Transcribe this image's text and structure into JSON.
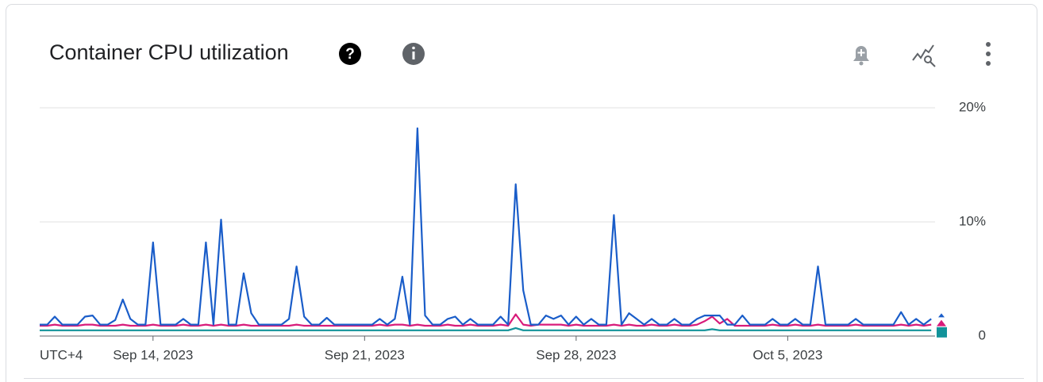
{
  "chart_data": {
    "type": "line",
    "title": "Container CPU utilization",
    "timezone": "UTC+4",
    "x": [
      "2023-09-10T06:00",
      "2023-09-10T12:00",
      "2023-09-10T18:00",
      "2023-09-11T00:00",
      "2023-09-11T06:00",
      "2023-09-11T12:00",
      "2023-09-11T18:00",
      "2023-09-12T00:00",
      "2023-09-12T06:00",
      "2023-09-12T12:00",
      "2023-09-12T18:00",
      "2023-09-13T00:00",
      "2023-09-13T06:00",
      "2023-09-13T12:00",
      "2023-09-13T18:00",
      "2023-09-14T00:00",
      "2023-09-14T06:00",
      "2023-09-14T12:00",
      "2023-09-14T18:00",
      "2023-09-15T00:00",
      "2023-09-15T06:00",
      "2023-09-15T12:00",
      "2023-09-15T18:00",
      "2023-09-16T00:00",
      "2023-09-16T06:00",
      "2023-09-16T12:00",
      "2023-09-16T18:00",
      "2023-09-17T00:00",
      "2023-09-17T06:00",
      "2023-09-17T12:00",
      "2023-09-17T18:00",
      "2023-09-18T00:00",
      "2023-09-18T06:00",
      "2023-09-18T12:00",
      "2023-09-18T18:00",
      "2023-09-19T00:00",
      "2023-09-19T06:00",
      "2023-09-19T12:00",
      "2023-09-19T18:00",
      "2023-09-20T00:00",
      "2023-09-20T06:00",
      "2023-09-20T12:00",
      "2023-09-20T18:00",
      "2023-09-21T00:00",
      "2023-09-21T06:00",
      "2023-09-21T12:00",
      "2023-09-21T18:00",
      "2023-09-22T00:00",
      "2023-09-22T06:00",
      "2023-09-22T12:00",
      "2023-09-22T18:00",
      "2023-09-23T00:00",
      "2023-09-23T06:00",
      "2023-09-23T12:00",
      "2023-09-23T18:00",
      "2023-09-24T00:00",
      "2023-09-24T06:00",
      "2023-09-24T12:00",
      "2023-09-24T18:00",
      "2023-09-25T00:00",
      "2023-09-25T06:00",
      "2023-09-25T12:00",
      "2023-09-25T18:00",
      "2023-09-26T00:00",
      "2023-09-26T06:00",
      "2023-09-26T12:00",
      "2023-09-26T18:00",
      "2023-09-27T00:00",
      "2023-09-27T06:00",
      "2023-09-27T12:00",
      "2023-09-27T18:00",
      "2023-09-28T00:00",
      "2023-09-28T06:00",
      "2023-09-28T12:00",
      "2023-09-28T18:00",
      "2023-09-29T00:00",
      "2023-09-29T06:00",
      "2023-09-29T12:00",
      "2023-09-29T18:00",
      "2023-09-30T00:00",
      "2023-09-30T06:00",
      "2023-09-30T12:00",
      "2023-09-30T18:00",
      "2023-10-01T00:00",
      "2023-10-01T06:00",
      "2023-10-01T12:00",
      "2023-10-01T18:00",
      "2023-10-02T00:00",
      "2023-10-02T06:00",
      "2023-10-02T12:00",
      "2023-10-02T18:00",
      "2023-10-03T00:00",
      "2023-10-03T06:00",
      "2023-10-03T12:00",
      "2023-10-03T18:00",
      "2023-10-04T00:00",
      "2023-10-04T06:00",
      "2023-10-04T12:00",
      "2023-10-04T18:00",
      "2023-10-05T00:00",
      "2023-10-05T06:00",
      "2023-10-05T12:00",
      "2023-10-05T18:00",
      "2023-10-06T00:00",
      "2023-10-06T06:00",
      "2023-10-06T12:00",
      "2023-10-06T18:00",
      "2023-10-07T00:00",
      "2023-10-07T06:00",
      "2023-10-07T12:00",
      "2023-10-07T18:00",
      "2023-10-08T00:00",
      "2023-10-08T06:00",
      "2023-10-08T12:00",
      "2023-10-08T18:00",
      "2023-10-09T00:00",
      "2023-10-09T06:00",
      "2023-10-09T12:00",
      "2023-10-09T18:00"
    ],
    "series": [
      {
        "color": "#1a5dc9",
        "values": [
          1.0,
          1.0,
          1.7,
          1.0,
          1.0,
          1.0,
          1.7,
          1.8,
          1.0,
          1.0,
          1.4,
          3.2,
          1.5,
          1.0,
          1.0,
          8.2,
          1.0,
          1.0,
          1.0,
          1.5,
          1.0,
          1.0,
          8.2,
          1.0,
          10.2,
          1.0,
          1.0,
          5.5,
          2.0,
          1.0,
          1.0,
          1.0,
          1.0,
          1.5,
          6.1,
          1.7,
          1.0,
          1.0,
          1.6,
          1.0,
          1.0,
          1.0,
          1.0,
          1.0,
          1.0,
          1.5,
          1.0,
          1.5,
          5.2,
          1.0,
          18.2,
          1.8,
          1.0,
          1.0,
          1.5,
          1.7,
          1.0,
          1.5,
          1.0,
          1.0,
          1.0,
          1.7,
          1.0,
          13.3,
          4.0,
          1.0,
          1.0,
          1.8,
          1.5,
          1.8,
          1.0,
          1.7,
          1.0,
          1.5,
          1.0,
          1.0,
          10.6,
          1.0,
          2.0,
          1.5,
          1.0,
          1.5,
          1.0,
          1.0,
          1.5,
          1.0,
          1.0,
          1.5,
          1.8,
          1.8,
          1.8,
          1.0,
          1.0,
          1.8,
          1.0,
          1.0,
          1.0,
          1.5,
          1.0,
          1.0,
          1.5,
          1.0,
          1.0,
          6.1,
          1.0,
          1.0,
          1.0,
          1.0,
          1.5,
          1.0,
          1.0,
          1.0,
          1.0,
          1.0,
          2.1,
          1.0,
          1.5,
          1.0,
          1.5
        ]
      },
      {
        "color": "#d81b7a",
        "values": [
          0.9,
          0.9,
          1.0,
          0.9,
          0.9,
          0.9,
          1.0,
          1.0,
          0.9,
          0.9,
          0.9,
          1.0,
          0.9,
          0.9,
          0.9,
          1.0,
          0.9,
          0.9,
          0.9,
          1.0,
          0.9,
          0.9,
          1.0,
          0.9,
          1.0,
          0.9,
          0.9,
          1.0,
          0.9,
          0.9,
          0.9,
          0.9,
          0.9,
          0.9,
          1.0,
          0.9,
          0.9,
          0.9,
          0.9,
          0.9,
          0.9,
          0.9,
          0.9,
          0.9,
          0.9,
          1.0,
          0.9,
          1.0,
          1.0,
          0.9,
          1.0,
          0.9,
          0.9,
          0.9,
          1.0,
          0.9,
          0.9,
          1.0,
          0.9,
          0.9,
          0.9,
          1.0,
          0.9,
          1.9,
          1.0,
          0.9,
          1.0,
          1.0,
          1.0,
          1.0,
          0.9,
          1.0,
          0.9,
          0.9,
          0.9,
          0.9,
          1.0,
          0.9,
          1.0,
          0.9,
          0.9,
          1.0,
          0.9,
          0.9,
          1.0,
          0.9,
          0.9,
          1.0,
          1.3,
          1.7,
          1.1,
          1.5,
          0.9,
          0.9,
          0.9,
          0.9,
          0.9,
          1.0,
          0.9,
          0.9,
          1.0,
          0.9,
          0.9,
          1.0,
          0.9,
          0.9,
          0.9,
          0.9,
          1.0,
          0.9,
          0.9,
          0.9,
          0.9,
          0.9,
          1.0,
          0.9,
          1.0,
          0.9,
          1.0
        ]
      },
      {
        "color": "#12939a",
        "values": [
          0.5,
          0.5,
          0.5,
          0.5,
          0.5,
          0.5,
          0.5,
          0.5,
          0.5,
          0.5,
          0.5,
          0.5,
          0.5,
          0.5,
          0.5,
          0.5,
          0.5,
          0.5,
          0.5,
          0.5,
          0.5,
          0.5,
          0.5,
          0.5,
          0.5,
          0.5,
          0.5,
          0.5,
          0.5,
          0.5,
          0.5,
          0.5,
          0.5,
          0.5,
          0.5,
          0.5,
          0.5,
          0.5,
          0.5,
          0.5,
          0.5,
          0.5,
          0.5,
          0.5,
          0.5,
          0.5,
          0.5,
          0.5,
          0.5,
          0.5,
          0.5,
          0.5,
          0.5,
          0.5,
          0.5,
          0.5,
          0.5,
          0.5,
          0.5,
          0.5,
          0.5,
          0.5,
          0.5,
          0.7,
          0.5,
          0.5,
          0.5,
          0.5,
          0.5,
          0.5,
          0.5,
          0.5,
          0.5,
          0.5,
          0.5,
          0.5,
          0.5,
          0.5,
          0.5,
          0.5,
          0.5,
          0.5,
          0.5,
          0.5,
          0.5,
          0.5,
          0.5,
          0.5,
          0.5,
          0.6,
          0.5,
          0.5,
          0.5,
          0.5,
          0.5,
          0.5,
          0.5,
          0.5,
          0.5,
          0.5,
          0.5,
          0.5,
          0.5,
          0.5,
          0.5,
          0.5,
          0.5,
          0.5,
          0.5,
          0.5,
          0.5,
          0.5,
          0.5,
          0.5,
          0.5,
          0.5,
          0.5,
          0.5,
          0.5
        ]
      }
    ],
    "xlim": [
      "2023-09-10T06:00",
      "2023-10-09T21:00"
    ],
    "xticks": [
      {
        "value": "2023-09-14T00:00",
        "label": "Sep 14, 2023"
      },
      {
        "value": "2023-09-21T00:00",
        "label": "Sep 21, 2023"
      },
      {
        "value": "2023-09-28T00:00",
        "label": "Sep 28, 2023"
      },
      {
        "value": "2023-10-05T00:00",
        "label": "Oct 5, 2023"
      }
    ],
    "ylim": [
      0,
      20
    ],
    "yticks": [
      0,
      {
        "value": 10,
        "label": "10%"
      },
      {
        "value": 20,
        "label": "20%"
      }
    ],
    "grid": true
  }
}
